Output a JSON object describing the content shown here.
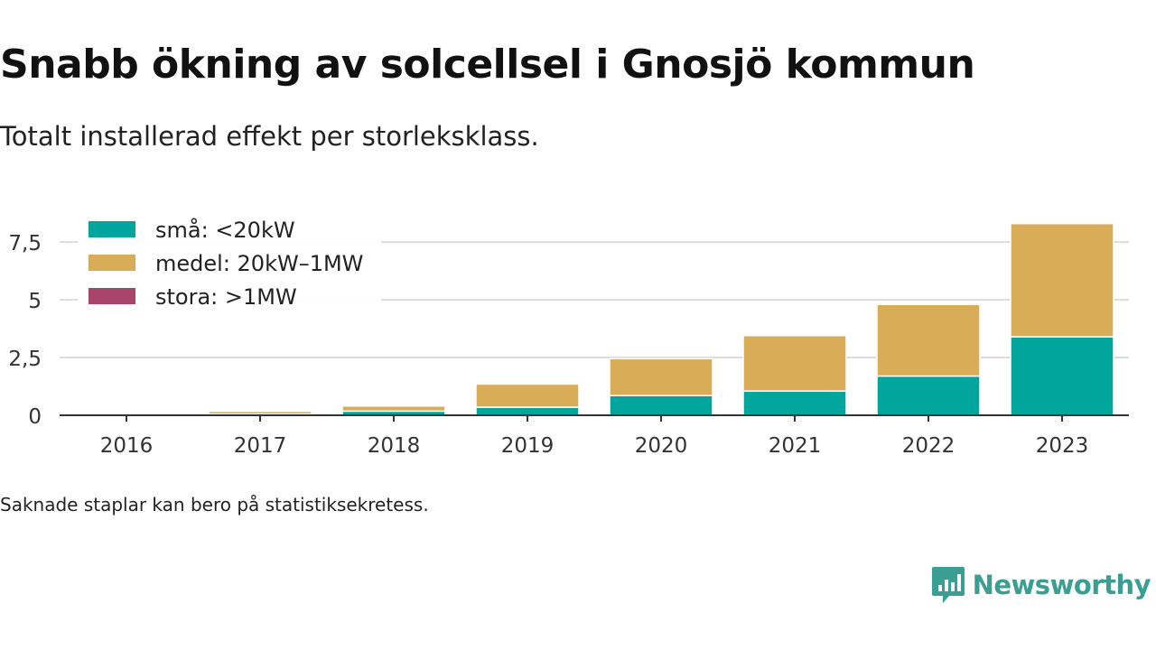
{
  "title": "Snabb ökning av solcellsel i Gnosjö kommun",
  "subtitle": "Totalt installerad effekt per storleksklass.",
  "note": "Saknade staplar kan bero på statistiksekretess.",
  "brand": {
    "name": "Newsworthy",
    "color": "#3a9e93",
    "icon": "newsworthy-chart-icon"
  },
  "colors": {
    "small": "#00a69c",
    "medium": "#d9ac58",
    "large": "#a8446b",
    "grid": "#dddddd",
    "axis": "#333333"
  },
  "chart_data": {
    "type": "bar",
    "stacked": true,
    "categories": [
      "2016",
      "2017",
      "2018",
      "2019",
      "2020",
      "2021",
      "2022",
      "2023"
    ],
    "series": [
      {
        "name": "små: <20kW",
        "color": "#00a69c",
        "values": [
          0.0,
          0.05,
          0.18,
          0.35,
          0.85,
          1.05,
          1.7,
          3.4
        ]
      },
      {
        "name": "medel: 20kW–1MW",
        "color": "#d9ac58",
        "values": [
          0.0,
          0.12,
          0.22,
          1.0,
          1.6,
          2.4,
          3.1,
          4.9
        ]
      },
      {
        "name": "stora: >1MW",
        "color": "#a8446b",
        "values": [
          0,
          0,
          0,
          0,
          0,
          0,
          0,
          0
        ]
      }
    ],
    "yticks": [
      0,
      2.5,
      5,
      7.5
    ],
    "ytick_labels": [
      "0",
      "2,5",
      "5",
      "7,5"
    ],
    "ylim": [
      0,
      8.6
    ],
    "grid": true,
    "legend": "top-left"
  }
}
